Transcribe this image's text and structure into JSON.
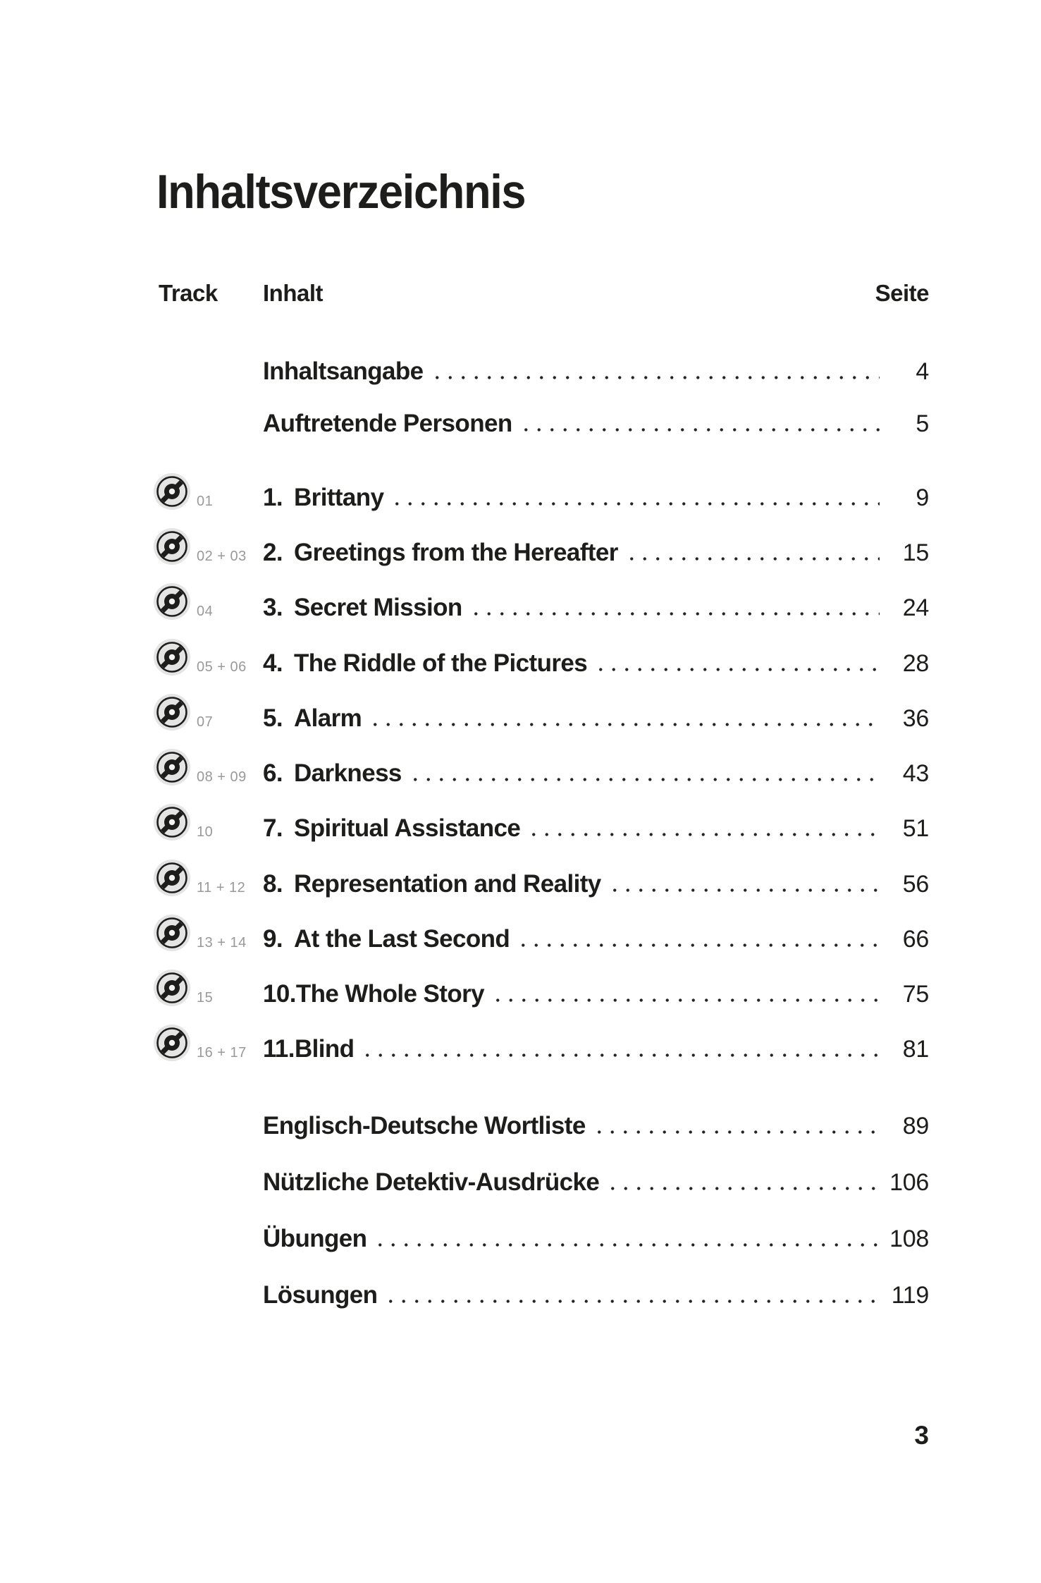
{
  "page": {
    "title": "Inhaltsverzeichnis",
    "header": {
      "track": "Track",
      "inhalt": "Inhalt",
      "seite": "Seite"
    },
    "entries": [
      {
        "track": "",
        "num": "",
        "title": "Inhaltsangabe",
        "page": "4"
      },
      {
        "track": "",
        "num": "",
        "title": "Auftretende Personen",
        "page": "5"
      },
      {
        "track": "01",
        "num": "1.",
        "title": "Brittany",
        "page": "9"
      },
      {
        "track": "02 + 03",
        "num": "2.",
        "title": "Greetings from the Hereafter",
        "page": "15"
      },
      {
        "track": "04",
        "num": "3.",
        "title": "Secret Mission",
        "page": "24"
      },
      {
        "track": "05 + 06",
        "num": "4.",
        "title": "The Riddle of the Pictures",
        "page": "28"
      },
      {
        "track": "07",
        "num": "5.",
        "title": "Alarm",
        "page": "36"
      },
      {
        "track": "08 + 09",
        "num": "6.",
        "title": "Darkness",
        "page": "43"
      },
      {
        "track": "10",
        "num": "7.",
        "title": "Spiritual Assistance",
        "page": "51"
      },
      {
        "track": "11 + 12",
        "num": "8.",
        "title": "Representation and Reality",
        "page": "56"
      },
      {
        "track": "13 + 14",
        "num": "9.",
        "title": "At the Last Second",
        "page": "66"
      },
      {
        "track": "15",
        "num": "10.",
        "title": "The Whole Story",
        "page": "75"
      },
      {
        "track": "16 + 17",
        "num": "11.",
        "title": "Blind",
        "page": "81"
      },
      {
        "track": "",
        "num": "",
        "title": "Englisch-Deutsche Wortliste",
        "page": "89"
      },
      {
        "track": "",
        "num": "",
        "title": "Nützliche Detektiv-Ausdrücke",
        "page": "106"
      },
      {
        "track": "",
        "num": "",
        "title": "Übungen",
        "page": "108"
      },
      {
        "track": "",
        "num": "",
        "title": "Lösungen",
        "page": "119"
      }
    ],
    "footer_page_number": "3",
    "colors": {
      "text": "#1d1d1b",
      "track_label": "#999999",
      "icon_background": "#e4e4e4",
      "background": "#ffffff"
    },
    "icons": {
      "track_icon": "cd-disc-icon"
    }
  }
}
